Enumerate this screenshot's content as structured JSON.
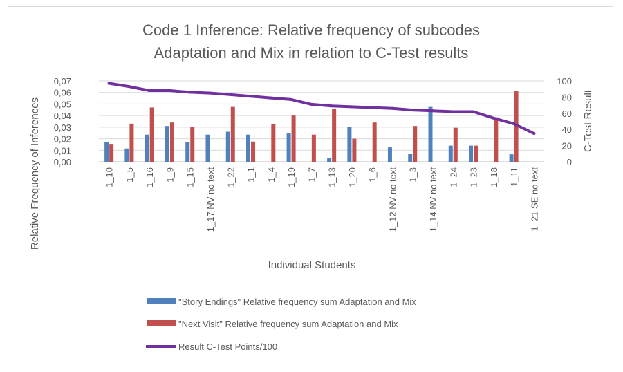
{
  "chart_data": {
    "type": "bar",
    "title_lines": [
      "Code 1 Inference: Relative frequency of subcodes",
      "Adaptation and Mix in relation to C-Test results"
    ],
    "xlabel": "Individual Students",
    "ylabel": "Relative Frequency of Inferences",
    "y2label": "C-Test Result",
    "ylim": [
      0,
      0.07
    ],
    "y2lim": [
      0,
      100
    ],
    "yticks": [
      "0,00",
      "0,01",
      "0,02",
      "0,03",
      "0,04",
      "0,05",
      "0,06",
      "0,07"
    ],
    "y2ticks": [
      "0",
      "20",
      "40",
      "60",
      "80",
      "100"
    ],
    "grid": true,
    "legend_position": "bottom",
    "categories": [
      "1_10",
      "1_5",
      "1_16",
      "1_9",
      "1_15",
      "1_17 NV no text",
      "1_22",
      "1_1",
      "1_4",
      "1_19",
      "1_7",
      "1_13",
      "1_20",
      "1_6",
      "1_12 NV no text",
      "1_3",
      "1_14 NV no text",
      "1_24",
      "1_23",
      "1_18",
      "1_11",
      "1_21 SE no text"
    ],
    "series": [
      {
        "name": "\"Story Endings\" Relative frequency sum Adaptation and Mix",
        "kind": "bar",
        "axis": "left",
        "color": "#4f81bd",
        "values": [
          0.017,
          0.0115,
          0.0235,
          0.031,
          0.017,
          0.0235,
          0.026,
          0.0235,
          0.0,
          0.0245,
          0.0,
          0.003,
          0.0305,
          0.0,
          0.0125,
          0.007,
          0.0475,
          0.014,
          0.014,
          0.0,
          0.0065,
          0.0
        ]
      },
      {
        "name": "\"Next Visit\" Relative frequency sum Adaptation and Mix",
        "kind": "bar",
        "axis": "left",
        "color": "#c0504d",
        "values": [
          0.0155,
          0.033,
          0.047,
          0.034,
          0.0305,
          0.0,
          0.0475,
          0.0175,
          0.0325,
          0.04,
          0.0235,
          0.046,
          0.02,
          0.034,
          0.0,
          0.031,
          0.0,
          0.0295,
          0.014,
          0.0385,
          0.061,
          0.0
        ]
      },
      {
        "name": "Result C-Test Points/100",
        "kind": "line",
        "axis": "right",
        "color": "#7030a0",
        "values": [
          97,
          93,
          88,
          88,
          86,
          85,
          83,
          81,
          79,
          77,
          71,
          69,
          68,
          67,
          66,
          64,
          63,
          62,
          62,
          54,
          47,
          35
        ]
      }
    ]
  }
}
